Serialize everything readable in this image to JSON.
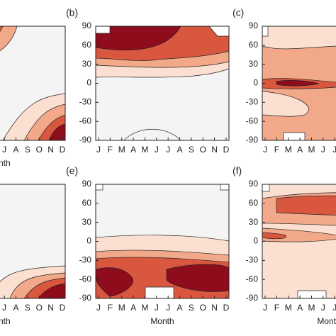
{
  "chart_data": [
    {
      "type": "contour",
      "categories": [
        null,
        null,
        null,
        null,
        null,
        null,
        "J",
        "A",
        "S",
        "O",
        "N",
        "D"
      ],
      "xlabel": "Month",
      "ylim": [
        -90,
        90
      ]
    },
    {
      "type": "contour",
      "panel_label": "(b)",
      "categories": [
        "J",
        "F",
        "M",
        "A",
        "M",
        "J",
        "J",
        "A",
        "S",
        "O",
        "N",
        "D"
      ],
      "ylim": [
        -90,
        90
      ],
      "yticks": [
        90,
        60,
        30,
        0,
        -30,
        -60,
        -90
      ]
    },
    {
      "type": "contour",
      "panel_label": "(c)",
      "categories": [
        "J",
        "F",
        "M",
        "A",
        "M",
        "J",
        "J",
        null,
        null,
        null,
        null,
        null
      ],
      "ylim": [
        -90,
        90
      ],
      "yticks": [
        90,
        60,
        30,
        0,
        -30,
        -60,
        -90
      ]
    },
    {
      "type": "contour",
      "categories": [
        null,
        null,
        null,
        null,
        null,
        null,
        "J",
        "A",
        "S",
        "O",
        "N",
        "D"
      ],
      "xlabel": "Month",
      "ylim": [
        -90,
        90
      ]
    },
    {
      "type": "contour",
      "panel_label": "(e)",
      "categories": [
        "J",
        "F",
        "M",
        "A",
        "M",
        "J",
        "J",
        "A",
        "S",
        "O",
        "N",
        "D"
      ],
      "xlabel": "Month",
      "ylim": [
        -90,
        90
      ],
      "yticks": [
        90,
        60,
        30,
        0,
        -30,
        -60,
        -90
      ]
    },
    {
      "type": "contour",
      "panel_label": "(f)",
      "categories": [
        "J",
        "F",
        "M",
        "A",
        "M",
        "J",
        "J",
        null,
        null,
        null,
        null,
        null
      ],
      "xlabel": "Month",
      "ylim": [
        -90,
        90
      ],
      "yticks": [
        90,
        60,
        30,
        0,
        -30,
        -60,
        -90
      ]
    }
  ]
}
